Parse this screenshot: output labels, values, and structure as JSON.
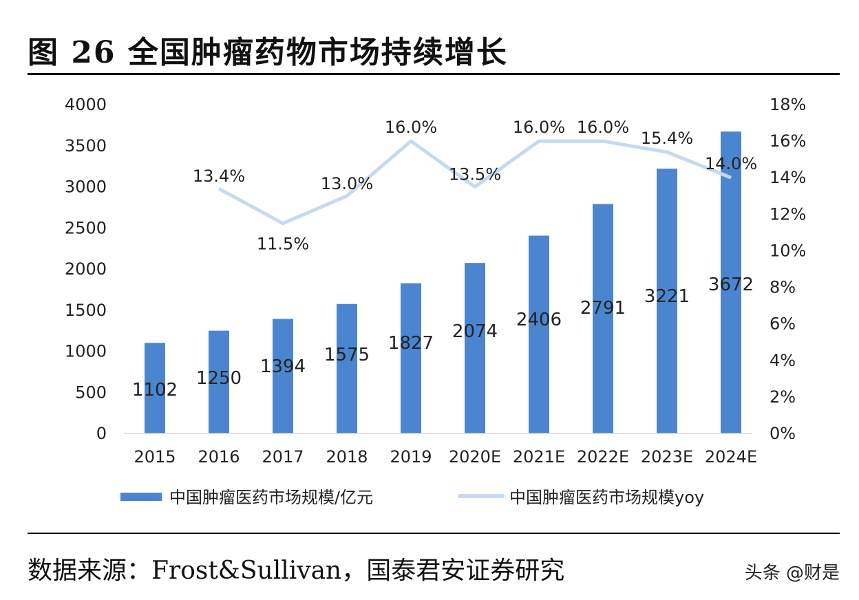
{
  "title": "图 26 全国肿瘤药物市场持续增长",
  "source": "数据来源：Frost&Sullivan，国泰君安证券研究",
  "watermark": "头条 @财是",
  "chart_data": {
    "type": "bar+line",
    "categories": [
      "2015",
      "2016",
      "2017",
      "2018",
      "2019",
      "2020E",
      "2021E",
      "2022E",
      "2023E",
      "2024E"
    ],
    "series": [
      {
        "name": "中国肿瘤医药市场规模/亿元",
        "type": "bar",
        "axis": "left",
        "color": "#4a86d0",
        "values": [
          1102,
          1250,
          1394,
          1575,
          1827,
          2074,
          2406,
          2791,
          3221,
          3672
        ],
        "labels": [
          "1102",
          "1250",
          "1394",
          "1575",
          "1827",
          "2074",
          "2406",
          "2791",
          "3221",
          "3672"
        ]
      },
      {
        "name": "中国肿瘤医药市场规模yoy",
        "type": "line",
        "axis": "right",
        "color": "#c5d9f1",
        "values": [
          null,
          13.4,
          11.5,
          13.0,
          16.0,
          13.5,
          16.0,
          16.0,
          15.4,
          14.0
        ],
        "labels": [
          "",
          "13.4%",
          "11.5%",
          "13.0%",
          "16.0%",
          "13.5%",
          "16.0%",
          "16.0%",
          "15.4%",
          "14.0%"
        ]
      }
    ],
    "left_axis": {
      "ylim": [
        0,
        4000
      ],
      "ticks": [
        "0",
        "500",
        "1000",
        "1500",
        "2000",
        "2500",
        "3000",
        "3500",
        "4000"
      ]
    },
    "right_axis": {
      "ylim": [
        0,
        18
      ],
      "ticks": [
        "0%",
        "2%",
        "4%",
        "6%",
        "8%",
        "10%",
        "12%",
        "14%",
        "16%",
        "18%"
      ]
    },
    "grid": false,
    "legend": "bottom"
  }
}
